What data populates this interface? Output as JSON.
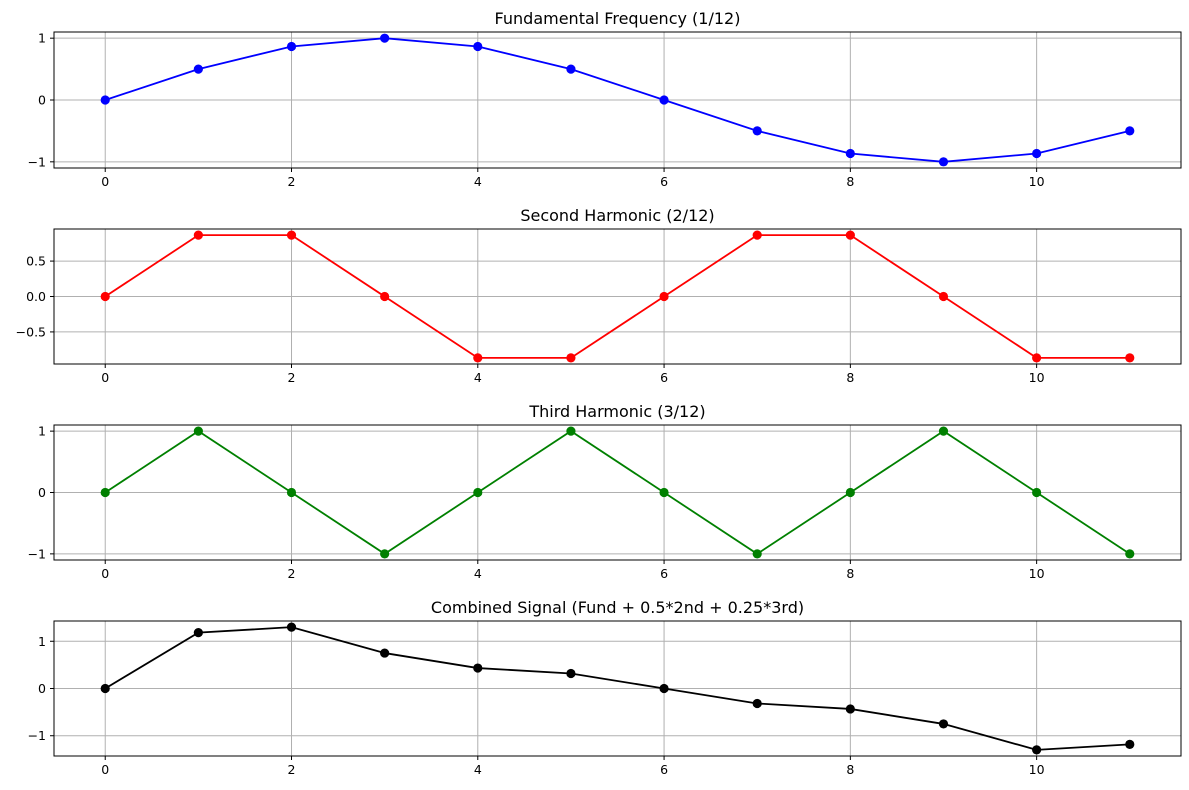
{
  "chart_data": [
    {
      "type": "line",
      "title": "Fundamental Frequency (1/12)",
      "color": "#0000ff",
      "x": [
        0,
        1,
        2,
        3,
        4,
        5,
        6,
        7,
        8,
        9,
        10,
        11
      ],
      "y": [
        0,
        0.5,
        0.866,
        1,
        0.866,
        0.5,
        0,
        -0.5,
        -0.866,
        -1,
        -0.866,
        -0.5
      ],
      "xlim": [
        -0.55,
        11.55
      ],
      "ylim": [
        -1.1,
        1.1
      ],
      "xticks": [
        0,
        2,
        4,
        6,
        8,
        10
      ],
      "yticks": [
        -1,
        0,
        1
      ],
      "ytick_labels": [
        "−1",
        "0",
        "1"
      ],
      "grid": true
    },
    {
      "type": "line",
      "title": "Second Harmonic (2/12)",
      "color": "#ff0000",
      "x": [
        0,
        1,
        2,
        3,
        4,
        5,
        6,
        7,
        8,
        9,
        10,
        11
      ],
      "y": [
        0,
        0.866,
        0.866,
        0,
        -0.866,
        -0.866,
        0,
        0.866,
        0.866,
        0,
        -0.866,
        -0.866
      ],
      "xlim": [
        -0.55,
        11.55
      ],
      "ylim": [
        -0.953,
        0.953
      ],
      "xticks": [
        0,
        2,
        4,
        6,
        8,
        10
      ],
      "yticks": [
        -0.5,
        0,
        0.5
      ],
      "ytick_labels": [
        "−0.5",
        "0.0",
        "0.5"
      ],
      "grid": true
    },
    {
      "type": "line",
      "title": "Third Harmonic (3/12)",
      "color": "#008000",
      "x": [
        0,
        1,
        2,
        3,
        4,
        5,
        6,
        7,
        8,
        9,
        10,
        11
      ],
      "y": [
        0,
        1,
        0,
        -1,
        0,
        1,
        0,
        -1,
        0,
        1,
        0,
        -1
      ],
      "xlim": [
        -0.55,
        11.55
      ],
      "ylim": [
        -1.1,
        1.1
      ],
      "xticks": [
        0,
        2,
        4,
        6,
        8,
        10
      ],
      "yticks": [
        -1,
        0,
        1
      ],
      "ytick_labels": [
        "−1",
        "0",
        "1"
      ],
      "grid": true
    },
    {
      "type": "line",
      "title": "Combined Signal (Fund + 0.5*2nd + 0.25*3rd)",
      "color": "#000000",
      "x": [
        0,
        1,
        2,
        3,
        4,
        5,
        6,
        7,
        8,
        9,
        10,
        11
      ],
      "y": [
        0,
        1.183,
        1.299,
        0.75,
        0.433,
        0.317,
        0,
        -0.317,
        -0.433,
        -0.75,
        -1.299,
        -1.183
      ],
      "xlim": [
        -0.55,
        11.55
      ],
      "ylim": [
        -1.429,
        1.429
      ],
      "xticks": [
        0,
        2,
        4,
        6,
        8,
        10
      ],
      "yticks": [
        -1,
        0,
        1
      ],
      "ytick_labels": [
        "−1",
        "0",
        "1"
      ],
      "grid": true
    }
  ]
}
